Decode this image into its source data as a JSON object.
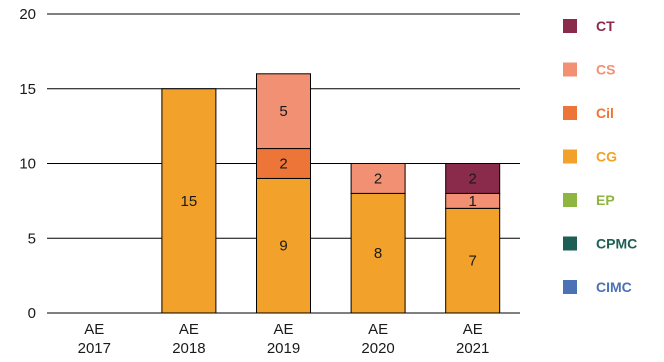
{
  "chart_data": {
    "type": "bar",
    "stacked": true,
    "categories": [
      [
        "AE",
        "2017"
      ],
      [
        "AE",
        "2018"
      ],
      [
        "AE",
        "2019"
      ],
      [
        "AE",
        "2020"
      ],
      [
        "AE",
        "2021"
      ]
    ],
    "ylim": [
      0,
      20
    ],
    "yticks": [
      0,
      5,
      10,
      15,
      20
    ],
    "grid": "horizontal",
    "legend_position": "right",
    "series": [
      {
        "name": "CG",
        "color": "#F2A22A",
        "values": [
          0,
          15,
          9,
          8,
          7
        ]
      },
      {
        "name": "Cil",
        "color": "#EE7538",
        "values": [
          0,
          0,
          2,
          0,
          0
        ]
      },
      {
        "name": "CS",
        "color": "#F29073",
        "values": [
          0,
          0,
          5,
          2,
          1
        ]
      },
      {
        "name": "CT",
        "color": "#8A2B4B",
        "values": [
          0,
          0,
          0,
          0,
          2
        ]
      },
      {
        "name": "EP",
        "color": "#8DB53F",
        "values": [
          0,
          0,
          0,
          0,
          0
        ]
      },
      {
        "name": "CPMC",
        "color": "#1E5E55",
        "values": [
          0,
          0,
          0,
          0,
          0
        ]
      },
      {
        "name": "CIMC",
        "color": "#4A72B5",
        "values": [
          0,
          0,
          0,
          0,
          0
        ]
      }
    ],
    "legend_order": [
      "CT",
      "CS",
      "Cil",
      "CG",
      "EP",
      "CPMC",
      "CIMC"
    ]
  }
}
